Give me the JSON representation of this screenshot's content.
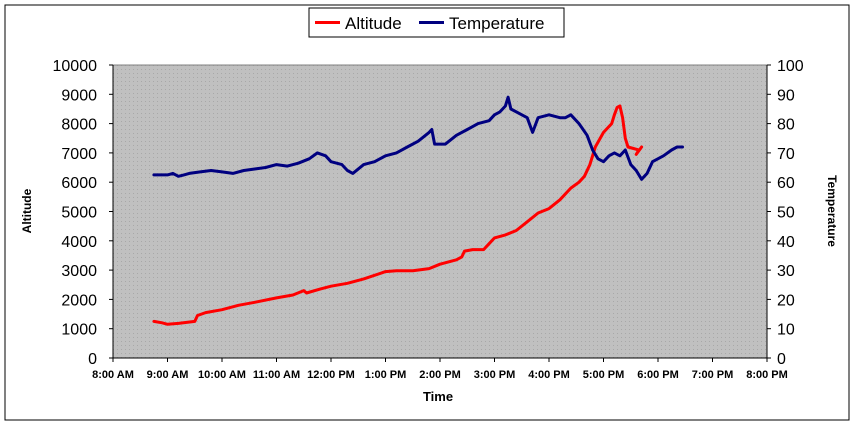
{
  "chart_data": {
    "type": "line",
    "xlabel": "Time",
    "ylabel_left": "Altitude",
    "ylabel_right": "Temperature",
    "x_ticks": [
      "8:00 AM",
      "9:00 AM",
      "10:00 AM",
      "11:00 AM",
      "12:00 PM",
      "1:00 PM",
      "2:00 PM",
      "3:00 PM",
      "4:00 PM",
      "5:00 PM",
      "6:00 PM",
      "7:00 PM",
      "8:00 PM"
    ],
    "y_left_ticks": [
      "0",
      "1000",
      "2000",
      "3000",
      "4000",
      "5000",
      "6000",
      "7000",
      "8000",
      "9000",
      "10000"
    ],
    "y_right_ticks": [
      "0",
      "10",
      "20",
      "30",
      "40",
      "50",
      "60",
      "70",
      "80",
      "90",
      "100"
    ],
    "x_range_hours": [
      8,
      20
    ],
    "y_left_range": [
      0,
      10000
    ],
    "y_right_range": [
      0,
      100
    ],
    "grid": false,
    "legend_position": "top-center",
    "plot_background": "#c0c0c0",
    "series": [
      {
        "name": "Altitude",
        "axis": "left",
        "color": "#ff0000",
        "points": [
          [
            8.75,
            1250
          ],
          [
            8.9,
            1200
          ],
          [
            9.0,
            1150
          ],
          [
            9.2,
            1180
          ],
          [
            9.5,
            1250
          ],
          [
            9.55,
            1450
          ],
          [
            9.7,
            1550
          ],
          [
            10.0,
            1650
          ],
          [
            10.3,
            1800
          ],
          [
            10.6,
            1900
          ],
          [
            11.0,
            2050
          ],
          [
            11.3,
            2150
          ],
          [
            11.5,
            2300
          ],
          [
            11.55,
            2220
          ],
          [
            11.8,
            2350
          ],
          [
            12.0,
            2450
          ],
          [
            12.3,
            2550
          ],
          [
            12.6,
            2700
          ],
          [
            13.0,
            2950
          ],
          [
            13.2,
            2980
          ],
          [
            13.5,
            2980
          ],
          [
            13.8,
            3050
          ],
          [
            14.0,
            3200
          ],
          [
            14.3,
            3350
          ],
          [
            14.4,
            3450
          ],
          [
            14.45,
            3650
          ],
          [
            14.6,
            3700
          ],
          [
            14.8,
            3700
          ],
          [
            14.9,
            3900
          ],
          [
            15.0,
            4100
          ],
          [
            15.2,
            4200
          ],
          [
            15.4,
            4350
          ],
          [
            15.6,
            4650
          ],
          [
            15.8,
            4950
          ],
          [
            16.0,
            5100
          ],
          [
            16.2,
            5400
          ],
          [
            16.4,
            5800
          ],
          [
            16.55,
            6000
          ],
          [
            16.65,
            6200
          ],
          [
            16.75,
            6600
          ],
          [
            16.85,
            7200
          ],
          [
            17.0,
            7700
          ],
          [
            17.1,
            7900
          ],
          [
            17.15,
            8000
          ],
          [
            17.2,
            8300
          ],
          [
            17.25,
            8550
          ],
          [
            17.3,
            8600
          ],
          [
            17.35,
            8200
          ],
          [
            17.4,
            7500
          ],
          [
            17.45,
            7200
          ],
          [
            17.55,
            7150
          ],
          [
            17.65,
            7100
          ],
          [
            17.6,
            6950
          ],
          [
            17.7,
            7200
          ]
        ]
      },
      {
        "name": "Temperature",
        "axis": "right",
        "color": "#000080",
        "points": [
          [
            8.75,
            62.5
          ],
          [
            9.0,
            62.5
          ],
          [
            9.1,
            63
          ],
          [
            9.2,
            62
          ],
          [
            9.3,
            62.5
          ],
          [
            9.4,
            63
          ],
          [
            9.6,
            63.5
          ],
          [
            9.8,
            64
          ],
          [
            10.0,
            63.5
          ],
          [
            10.2,
            63
          ],
          [
            10.4,
            64
          ],
          [
            10.6,
            64.5
          ],
          [
            10.8,
            65
          ],
          [
            11.0,
            66
          ],
          [
            11.2,
            65.5
          ],
          [
            11.4,
            66.5
          ],
          [
            11.6,
            68
          ],
          [
            11.75,
            70
          ],
          [
            11.9,
            69
          ],
          [
            12.0,
            67
          ],
          [
            12.2,
            66
          ],
          [
            12.3,
            64
          ],
          [
            12.4,
            63
          ],
          [
            12.6,
            66
          ],
          [
            12.8,
            67
          ],
          [
            13.0,
            69
          ],
          [
            13.2,
            70
          ],
          [
            13.4,
            72
          ],
          [
            13.6,
            74
          ],
          [
            13.8,
            77
          ],
          [
            13.85,
            78
          ],
          [
            13.9,
            73
          ],
          [
            14.1,
            73
          ],
          [
            14.3,
            76
          ],
          [
            14.5,
            78
          ],
          [
            14.7,
            80
          ],
          [
            14.9,
            81
          ],
          [
            15.0,
            83
          ],
          [
            15.1,
            84
          ],
          [
            15.2,
            86
          ],
          [
            15.25,
            89
          ],
          [
            15.3,
            85
          ],
          [
            15.5,
            83
          ],
          [
            15.6,
            82
          ],
          [
            15.7,
            77
          ],
          [
            15.8,
            82
          ],
          [
            16.0,
            83
          ],
          [
            16.2,
            82
          ],
          [
            16.3,
            82
          ],
          [
            16.4,
            83
          ],
          [
            16.55,
            80
          ],
          [
            16.7,
            76
          ],
          [
            16.8,
            71
          ],
          [
            16.9,
            68
          ],
          [
            17.0,
            67
          ],
          [
            17.1,
            69
          ],
          [
            17.2,
            70
          ],
          [
            17.3,
            69
          ],
          [
            17.4,
            71
          ],
          [
            17.5,
            66
          ],
          [
            17.6,
            64
          ],
          [
            17.7,
            61
          ],
          [
            17.8,
            63
          ],
          [
            17.9,
            67
          ],
          [
            18.1,
            69
          ],
          [
            18.25,
            71
          ],
          [
            18.35,
            72
          ],
          [
            18.45,
            72
          ]
        ]
      }
    ]
  }
}
